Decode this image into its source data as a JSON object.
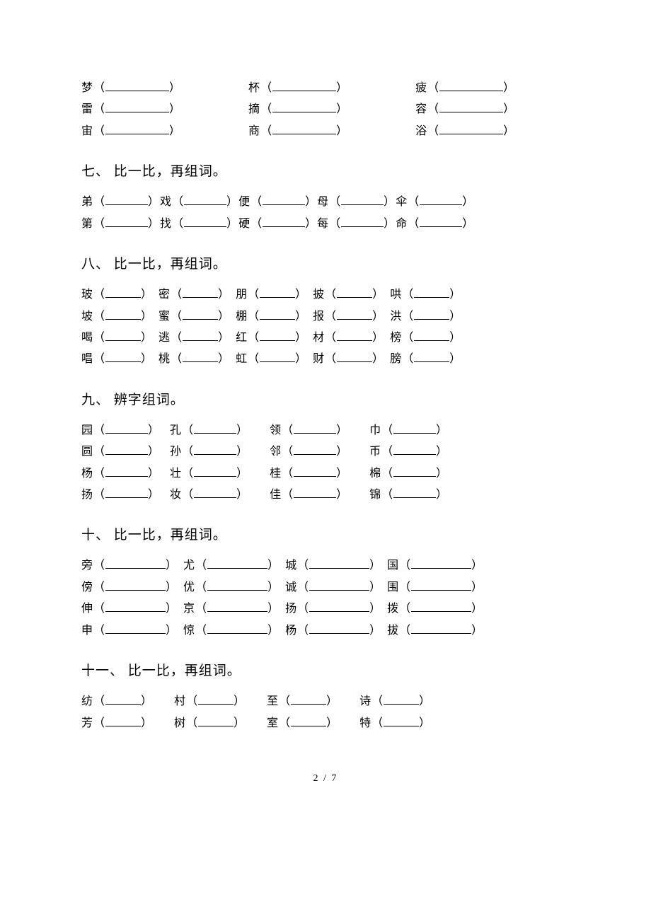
{
  "top_rows": [
    [
      "梦",
      "杯",
      "疲"
    ],
    [
      "雷",
      "摘",
      "容"
    ],
    [
      "宙",
      "商",
      "浴"
    ]
  ],
  "sections": {
    "s7": {
      "title": "七、 比一比，再组词。",
      "rows": [
        [
          "弟",
          "戏",
          "便",
          "母",
          "伞"
        ],
        [
          "第",
          "找",
          "硬",
          "每",
          "命"
        ]
      ]
    },
    "s8": {
      "title": "八、 比一比，再组词。",
      "rows": [
        [
          "玻",
          "密",
          "朋",
          "披",
          "哄"
        ],
        [
          "坡",
          "蜜",
          "棚",
          "报",
          "洪"
        ],
        [
          "喝",
          "逃",
          "红",
          "材",
          "榜"
        ],
        [
          "唱",
          "桃",
          "虹",
          "财",
          "膀"
        ]
      ]
    },
    "s9": {
      "title": "九、 辨字组词。",
      "rows": [
        [
          "园",
          "孔",
          "领",
          "巾"
        ],
        [
          "圆",
          "孙",
          "邻",
          "币"
        ],
        [
          "杨",
          "壮",
          "桂",
          "棉"
        ],
        [
          "扬",
          "妆",
          "佳",
          "锦"
        ]
      ]
    },
    "s10": {
      "title": "十、 比一比，再组词。",
      "rows": [
        [
          "旁",
          "尤",
          "城",
          "国"
        ],
        [
          "傍",
          "优",
          "诚",
          "围"
        ],
        [
          "伸",
          "京",
          "扬",
          "拨"
        ],
        [
          "申",
          "惊",
          "杨",
          "拔"
        ]
      ]
    },
    "s11": {
      "title": "十一、 比一比，再组词。",
      "rows": [
        [
          "纺",
          "村",
          "至",
          "诗"
        ],
        [
          "芳",
          "树",
          "室",
          "特"
        ]
      ]
    }
  },
  "footer": "2 / 7"
}
